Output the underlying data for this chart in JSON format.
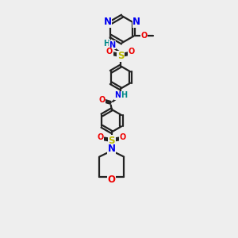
{
  "bg_color": "#eeeeee",
  "bond_color": "#222222",
  "bond_width": 1.6,
  "colors": {
    "N": "#0000ee",
    "O": "#ee0000",
    "S": "#bbbb00",
    "C": "#222222",
    "H": "#008888"
  },
  "fs_large": 8.5,
  "fs_small": 7.0,
  "xlim": [
    0,
    10
  ],
  "ylim": [
    0,
    15
  ]
}
